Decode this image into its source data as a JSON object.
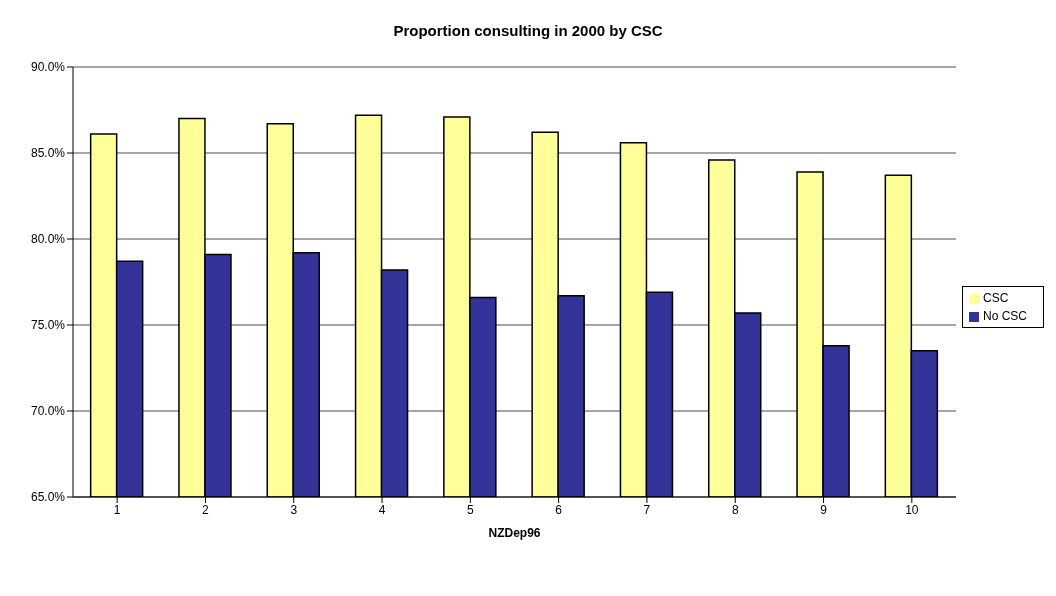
{
  "chart_data": {
    "type": "bar",
    "title": "Proportion consulting in 2000 by CSC",
    "xlabel": "NZDep96",
    "categories": [
      "1",
      "2",
      "3",
      "4",
      "5",
      "6",
      "7",
      "8",
      "9",
      "10"
    ],
    "series": [
      {
        "name": "CSC",
        "color": "#ffff99",
        "values": [
          86.1,
          87.0,
          86.7,
          87.2,
          87.1,
          86.2,
          85.6,
          84.6,
          83.9,
          83.7
        ]
      },
      {
        "name": "No CSC",
        "color": "#333399",
        "values": [
          78.7,
          79.1,
          79.2,
          78.2,
          76.6,
          76.7,
          76.9,
          75.7,
          73.8,
          73.5
        ]
      }
    ],
    "ylim": [
      65,
      90
    ],
    "yticks": [
      {
        "value": 65,
        "label": "65.0%"
      },
      {
        "value": 70,
        "label": "70.0%"
      },
      {
        "value": 75,
        "label": "75.0%"
      },
      {
        "value": 80,
        "label": "80.0%"
      },
      {
        "value": 85,
        "label": "85.0%"
      },
      {
        "value": 90,
        "label": "90.0%"
      }
    ],
    "grid": "y",
    "legend": "right"
  }
}
